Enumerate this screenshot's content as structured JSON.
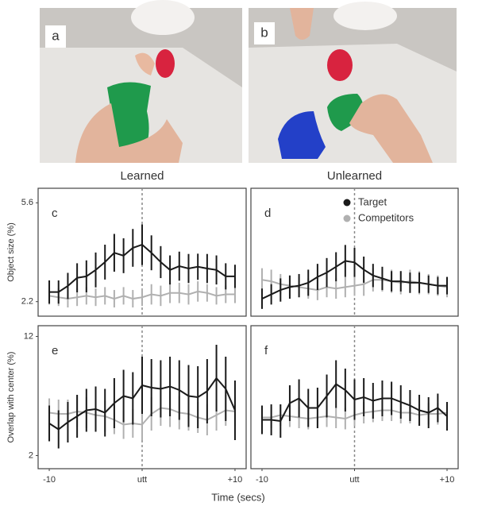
{
  "photo_labels": [
    "a",
    "b"
  ],
  "xlabel": "Time (secs)",
  "chart_data": [
    {
      "type": "line",
      "panel": "c",
      "title": "Learned",
      "ylabel": "Object size (%)",
      "xlim": [
        -11.2,
        11.2
      ],
      "ylim": [
        1.7,
        6.1
      ],
      "yticks": [
        2.2,
        5.6
      ],
      "vline": 0,
      "x": [
        -10,
        -9,
        -8,
        -7,
        -6,
        -5,
        -4,
        -3,
        -2,
        -1,
        0,
        1,
        2,
        3,
        4,
        5,
        6,
        7,
        8,
        9,
        10
      ],
      "series": [
        {
          "name": "Target",
          "color": "#1a1a1a",
          "values": [
            2.53,
            2.53,
            2.74,
            3.02,
            3.07,
            3.29,
            3.56,
            3.88,
            3.78,
            4.05,
            4.16,
            3.88,
            3.56,
            3.29,
            3.42,
            3.34,
            3.4,
            3.34,
            3.29,
            3.07,
            3.07
          ],
          "errors": [
            0.4,
            0.4,
            0.45,
            0.5,
            0.55,
            0.6,
            0.6,
            0.65,
            0.6,
            0.65,
            0.7,
            0.6,
            0.55,
            0.5,
            0.5,
            0.5,
            0.45,
            0.5,
            0.5,
            0.45,
            0.4
          ]
        },
        {
          "name": "Competitors",
          "color": "#b0b0b0",
          "values": [
            2.4,
            2.35,
            2.3,
            2.35,
            2.4,
            2.35,
            2.4,
            2.3,
            2.4,
            2.3,
            2.35,
            2.45,
            2.4,
            2.5,
            2.5,
            2.45,
            2.55,
            2.5,
            2.4,
            2.45,
            2.45
          ],
          "errors": [
            0.3,
            0.3,
            0.3,
            0.3,
            0.3,
            0.3,
            0.3,
            0.3,
            0.3,
            0.3,
            0.3,
            0.35,
            0.35,
            0.35,
            0.35,
            0.35,
            0.35,
            0.3,
            0.3,
            0.3,
            0.3
          ]
        }
      ]
    },
    {
      "type": "line",
      "panel": "d",
      "title": "Unlearned",
      "legend": "upper right",
      "xlim": [
        -11.2,
        11.2
      ],
      "ylim": [
        1.7,
        6.1
      ],
      "vline": 0,
      "x": [
        -10,
        -9,
        -8,
        -7,
        -6,
        -5,
        -4,
        -3,
        -2,
        -1,
        0,
        1,
        2,
        3,
        4,
        5,
        6,
        7,
        8,
        9,
        10
      ],
      "series": [
        {
          "name": "Target",
          "color": "#1a1a1a",
          "values": [
            2.3,
            2.45,
            2.6,
            2.7,
            2.75,
            2.85,
            3.05,
            3.2,
            3.4,
            3.6,
            3.55,
            3.3,
            3.1,
            3.0,
            2.9,
            2.9,
            2.85,
            2.85,
            2.8,
            2.75,
            2.75
          ],
          "errors": [
            0.35,
            0.35,
            0.4,
            0.4,
            0.4,
            0.45,
            0.45,
            0.5,
            0.5,
            0.55,
            0.5,
            0.45,
            0.4,
            0.4,
            0.35,
            0.35,
            0.35,
            0.35,
            0.3,
            0.3,
            0.3
          ]
        },
        {
          "name": "Competitors",
          "color": "#b0b0b0",
          "values": [
            2.95,
            2.9,
            2.8,
            2.75,
            2.7,
            2.65,
            2.6,
            2.7,
            2.65,
            2.7,
            2.75,
            2.8,
            2.95,
            2.95,
            2.9,
            2.85,
            2.9,
            2.85,
            2.8,
            2.75,
            2.7
          ],
          "errors": [
            0.4,
            0.4,
            0.35,
            0.35,
            0.35,
            0.35,
            0.35,
            0.35,
            0.35,
            0.35,
            0.35,
            0.4,
            0.4,
            0.4,
            0.4,
            0.4,
            0.4,
            0.4,
            0.35,
            0.35,
            0.35
          ]
        }
      ]
    },
    {
      "type": "line",
      "panel": "e",
      "ylabel": "Overlap with center (%)",
      "xlim": [
        -11.2,
        11.2
      ],
      "ylim": [
        0.9,
        12.9
      ],
      "yticks": [
        2,
        12
      ],
      "vline": 0,
      "xticks": [
        -10,
        {
          "value": 0,
          "label": "utt"
        },
        {
          "value": 10,
          "label": "+10"
        }
      ],
      "x": [
        -10,
        -9,
        -8,
        -7,
        -6,
        -5,
        -4,
        -3,
        -2,
        -1,
        0,
        1,
        2,
        3,
        4,
        5,
        6,
        7,
        8,
        9,
        10
      ],
      "series": [
        {
          "name": "Target",
          "color": "#1a1a1a",
          "values": [
            4.7,
            4.2,
            4.8,
            5.3,
            5.8,
            5.9,
            5.6,
            6.4,
            7.0,
            6.8,
            7.9,
            7.7,
            7.6,
            7.8,
            7.5,
            7.0,
            6.9,
            7.4,
            8.5,
            7.6,
            5.8
          ],
          "errors": [
            1.5,
            1.6,
            1.7,
            1.8,
            1.8,
            1.9,
            2.0,
            2.1,
            2.2,
            2.2,
            2.4,
            2.4,
            2.4,
            2.5,
            2.5,
            2.6,
            2.6,
            2.7,
            2.8,
            2.7,
            2.5
          ]
        },
        {
          "name": "Competitors",
          "color": "#b0b0b0",
          "values": [
            5.6,
            5.5,
            5.5,
            5.7,
            5.6,
            5.4,
            5.3,
            5.0,
            4.6,
            4.7,
            4.6,
            5.5,
            6.0,
            5.9,
            5.6,
            5.5,
            5.2,
            5.0,
            5.4,
            5.8,
            5.7
          ],
          "errors": [
            1.2,
            1.2,
            1.2,
            1.3,
            1.3,
            1.3,
            1.3,
            1.2,
            1.2,
            1.2,
            1.3,
            1.4,
            1.5,
            1.5,
            1.4,
            1.4,
            1.3,
            1.3,
            1.3,
            1.3,
            1.2
          ]
        }
      ]
    },
    {
      "type": "line",
      "panel": "f",
      "xlim": [
        -11.2,
        11.2
      ],
      "ylim": [
        0.9,
        12.9
      ],
      "vline": 0,
      "xticks": [
        -10,
        {
          "value": 0,
          "label": "utt"
        },
        {
          "value": 10,
          "label": "+10"
        }
      ],
      "x": [
        -10,
        -9,
        -8,
        -7,
        -6,
        -5,
        -4,
        -3,
        -2,
        -1,
        0,
        1,
        2,
        3,
        4,
        5,
        6,
        7,
        8,
        9,
        10
      ],
      "series": [
        {
          "name": "Target",
          "color": "#1a1a1a",
          "values": [
            5.0,
            5.0,
            4.9,
            6.4,
            6.8,
            6.0,
            6.0,
            7.0,
            8.0,
            7.5,
            6.7,
            6.9,
            6.6,
            6.8,
            6.8,
            6.5,
            6.2,
            5.8,
            5.6,
            6.0,
            5.3
          ],
          "errors": [
            1.2,
            1.3,
            1.4,
            1.5,
            1.6,
            1.6,
            1.7,
            1.8,
            2.0,
            1.8,
            1.7,
            1.6,
            1.5,
            1.5,
            1.4,
            1.4,
            1.3,
            1.3,
            1.3,
            1.2,
            1.2
          ]
        },
        {
          "name": "Competitors",
          "color": "#b0b0b0",
          "values": [
            5.2,
            5.2,
            5.4,
            5.3,
            5.2,
            5.1,
            5.2,
            5.3,
            5.2,
            5.1,
            5.4,
            5.6,
            5.7,
            5.8,
            5.8,
            5.6,
            5.6,
            5.4,
            5.5,
            5.5,
            5.6
          ],
          "errors": [
            0.9,
            0.9,
            0.9,
            0.9,
            0.9,
            0.9,
            0.9,
            0.9,
            0.9,
            0.9,
            0.9,
            0.9,
            0.9,
            0.9,
            0.9,
            0.9,
            0.9,
            0.9,
            0.9,
            0.9,
            0.9
          ]
        }
      ]
    }
  ]
}
